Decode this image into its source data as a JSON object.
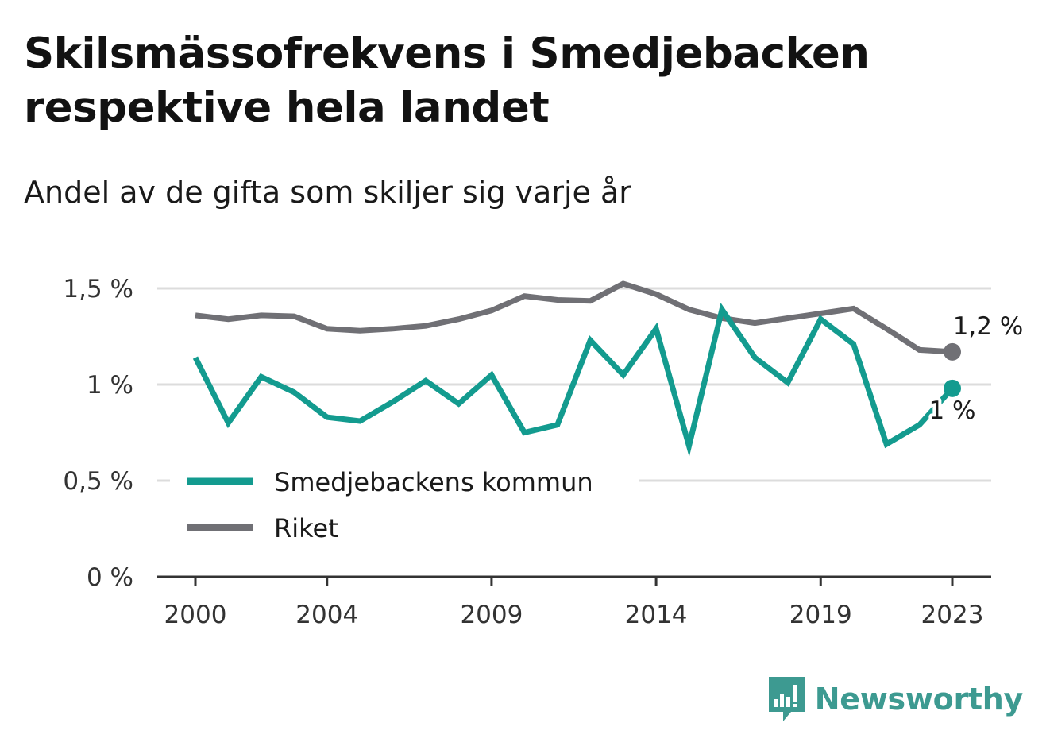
{
  "header": {
    "title": "Skilsmässofrekvens i Smedjebacken respektive hela landet",
    "subtitle": "Andel av de gifta som skiljer sig varje år"
  },
  "brand": {
    "name": "Newsworthy",
    "icon": "bar-chart-speech-bubble-icon",
    "color": "#3d9a91"
  },
  "chart_data": {
    "type": "line",
    "x": [
      2000,
      2001,
      2002,
      2003,
      2004,
      2005,
      2006,
      2007,
      2008,
      2009,
      2010,
      2011,
      2012,
      2013,
      2014,
      2015,
      2016,
      2017,
      2018,
      2019,
      2020,
      2021,
      2022,
      2023
    ],
    "x_tick_labels": [
      "2000",
      "2004",
      "2009",
      "2014",
      "2019",
      "2023"
    ],
    "x_ticks": [
      2000,
      2004,
      2009,
      2014,
      2019,
      2023
    ],
    "y_tick_labels": [
      "0 %",
      "0,5 %",
      "1 %",
      "1,5 %"
    ],
    "y_ticks": [
      0,
      0.5,
      1,
      1.5
    ],
    "ylim": [
      0,
      1.5
    ],
    "xlim": [
      1999,
      2024.2
    ],
    "grid": true,
    "legend_position": "bottom-left",
    "series": [
      {
        "name": "Smedjebackens kommun",
        "color": "#139b8f",
        "values": [
          1.14,
          0.8,
          1.04,
          0.96,
          0.83,
          0.81,
          0.91,
          1.02,
          0.9,
          1.05,
          0.75,
          0.79,
          1.23,
          1.05,
          1.29,
          0.68,
          1.39,
          1.14,
          1.01,
          1.34,
          1.21,
          0.69,
          0.79,
          0.98
        ],
        "end_label": "1 %"
      },
      {
        "name": "Riket",
        "color": "#707075",
        "values": [
          1.36,
          1.34,
          1.36,
          1.355,
          1.29,
          1.28,
          1.29,
          1.305,
          1.34,
          1.385,
          1.46,
          1.44,
          1.435,
          1.525,
          1.47,
          1.39,
          1.345,
          1.32,
          1.345,
          1.37,
          1.395,
          1.29,
          1.18,
          1.17
        ],
        "end_label": "1,2 %"
      }
    ]
  }
}
